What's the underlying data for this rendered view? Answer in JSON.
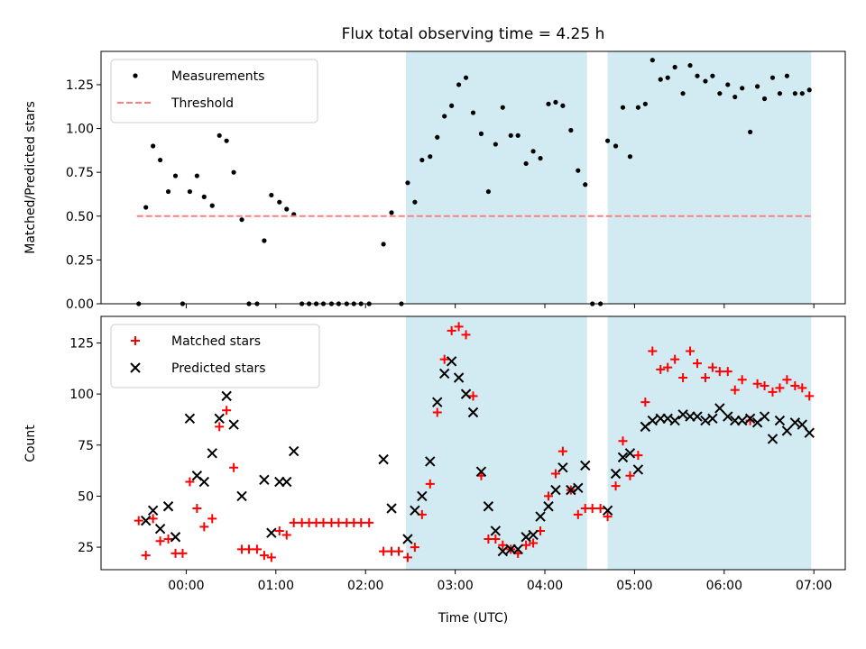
{
  "chart_data": [
    {
      "type": "scatter",
      "title": "Flux total observing time = 4.25 h",
      "ylabel": "Matched/Predicted stars",
      "ylim": [
        0,
        1.44
      ],
      "xlim": [
        -0.95,
        7.35
      ],
      "yticks": [
        0.0,
        0.25,
        0.5,
        0.75,
        1.0,
        1.25
      ],
      "ytick_labels": [
        "0.00",
        "0.25",
        "0.50",
        "0.75",
        "1.00",
        "1.25"
      ],
      "shaded_intervals": [
        [
          2.45,
          4.47
        ],
        [
          4.7,
          6.97
        ]
      ],
      "shade_color": "#add8e6",
      "legend_position": "upper left",
      "series": [
        {
          "name": "Measurements",
          "marker": "dot",
          "color": "#000000",
          "points": [
            [
              -0.53,
              0.0
            ],
            [
              -0.45,
              0.55
            ],
            [
              -0.37,
              0.9
            ],
            [
              -0.29,
              0.82
            ],
            [
              -0.2,
              0.64
            ],
            [
              -0.12,
              0.73
            ],
            [
              -0.04,
              0.0
            ],
            [
              0.04,
              0.64
            ],
            [
              0.12,
              0.73
            ],
            [
              0.2,
              0.61
            ],
            [
              0.29,
              0.56
            ],
            [
              0.37,
              0.96
            ],
            [
              0.45,
              0.93
            ],
            [
              0.53,
              0.75
            ],
            [
              0.62,
              0.48
            ],
            [
              0.7,
              0.0
            ],
            [
              0.79,
              0.0
            ],
            [
              0.87,
              0.36
            ],
            [
              0.95,
              0.62
            ],
            [
              1.04,
              0.58
            ],
            [
              1.12,
              0.54
            ],
            [
              1.2,
              0.51
            ],
            [
              1.29,
              0.0
            ],
            [
              1.37,
              0.0
            ],
            [
              1.45,
              0.0
            ],
            [
              1.53,
              0.0
            ],
            [
              1.62,
              0.0
            ],
            [
              1.7,
              0.0
            ],
            [
              1.79,
              0.0
            ],
            [
              1.87,
              0.0
            ],
            [
              1.95,
              0.0
            ],
            [
              2.04,
              0.0
            ],
            [
              2.2,
              0.34
            ],
            [
              2.29,
              0.52
            ],
            [
              2.4,
              0.0
            ],
            [
              2.47,
              0.69
            ],
            [
              2.55,
              0.58
            ],
            [
              2.63,
              0.82
            ],
            [
              2.72,
              0.84
            ],
            [
              2.8,
              0.95
            ],
            [
              2.88,
              1.07
            ],
            [
              2.96,
              1.13
            ],
            [
              3.04,
              1.25
            ],
            [
              3.12,
              1.29
            ],
            [
              3.2,
              1.09
            ],
            [
              3.29,
              0.97
            ],
            [
              3.37,
              0.64
            ],
            [
              3.45,
              0.91
            ],
            [
              3.53,
              1.12
            ],
            [
              3.62,
              0.96
            ],
            [
              3.7,
              0.96
            ],
            [
              3.79,
              0.8
            ],
            [
              3.87,
              0.87
            ],
            [
              3.95,
              0.83
            ],
            [
              4.04,
              1.14
            ],
            [
              4.12,
              1.15
            ],
            [
              4.2,
              1.13
            ],
            [
              4.29,
              0.99
            ],
            [
              4.37,
              0.76
            ],
            [
              4.45,
              0.68
            ],
            [
              4.53,
              0.0
            ],
            [
              4.62,
              0.0
            ],
            [
              4.7,
              0.93
            ],
            [
              4.79,
              0.9
            ],
            [
              4.87,
              1.12
            ],
            [
              4.95,
              0.84
            ],
            [
              5.04,
              1.12
            ],
            [
              5.12,
              1.14
            ],
            [
              5.2,
              1.39
            ],
            [
              5.29,
              1.28
            ],
            [
              5.37,
              1.29
            ],
            [
              5.45,
              1.35
            ],
            [
              5.54,
              1.2
            ],
            [
              5.62,
              1.36
            ],
            [
              5.7,
              1.3
            ],
            [
              5.79,
              1.27
            ],
            [
              5.87,
              1.3
            ],
            [
              5.95,
              1.2
            ],
            [
              6.04,
              1.25
            ],
            [
              6.12,
              1.18
            ],
            [
              6.2,
              1.23
            ],
            [
              6.29,
              0.98
            ],
            [
              6.37,
              1.24
            ],
            [
              6.45,
              1.17
            ],
            [
              6.54,
              1.29
            ],
            [
              6.62,
              1.2
            ],
            [
              6.7,
              1.3
            ],
            [
              6.79,
              1.2
            ],
            [
              6.87,
              1.2
            ],
            [
              6.95,
              1.22
            ]
          ]
        },
        {
          "name": "Threshold",
          "marker": "dashed-line",
          "color": "#ff7f7f",
          "points": [
            [
              -0.55,
              0.5
            ],
            [
              6.99,
              0.5
            ]
          ]
        }
      ]
    },
    {
      "type": "scatter",
      "xlabel": "Time (UTC)",
      "ylabel": "Count",
      "ylim": [
        14,
        138
      ],
      "xlim": [
        -0.95,
        7.35
      ],
      "yticks": [
        25,
        50,
        75,
        100,
        125
      ],
      "ytick_labels": [
        "25",
        "50",
        "75",
        "100",
        "125"
      ],
      "xticks": [
        0,
        1,
        2,
        3,
        4,
        5,
        6,
        7
      ],
      "xtick_labels": [
        "00:00",
        "01:00",
        "02:00",
        "03:00",
        "04:00",
        "05:00",
        "06:00",
        "07:00"
      ],
      "shaded_intervals": [
        [
          2.45,
          4.47
        ],
        [
          4.7,
          6.97
        ]
      ],
      "shade_color": "#add8e6",
      "legend_position": "upper left",
      "series": [
        {
          "name": "Matched stars",
          "marker": "plus",
          "color": "#ff0000",
          "points": [
            [
              -0.53,
              38
            ],
            [
              -0.45,
              21
            ],
            [
              -0.37,
              39
            ],
            [
              -0.29,
              28
            ],
            [
              -0.2,
              29
            ],
            [
              -0.12,
              22
            ],
            [
              -0.04,
              22
            ],
            [
              0.04,
              57
            ],
            [
              0.12,
              44
            ],
            [
              0.2,
              35
            ],
            [
              0.29,
              39
            ],
            [
              0.37,
              84
            ],
            [
              0.45,
              92
            ],
            [
              0.53,
              64
            ],
            [
              0.62,
              24
            ],
            [
              0.7,
              24
            ],
            [
              0.79,
              24
            ],
            [
              0.87,
              21
            ],
            [
              0.95,
              20
            ],
            [
              1.04,
              33
            ],
            [
              1.12,
              31
            ],
            [
              1.2,
              37
            ],
            [
              1.29,
              37
            ],
            [
              1.37,
              37
            ],
            [
              1.45,
              37
            ],
            [
              1.53,
              37
            ],
            [
              1.62,
              37
            ],
            [
              1.7,
              37
            ],
            [
              1.79,
              37
            ],
            [
              1.87,
              37
            ],
            [
              1.95,
              37
            ],
            [
              2.04,
              37
            ],
            [
              2.2,
              23
            ],
            [
              2.29,
              23
            ],
            [
              2.37,
              23
            ],
            [
              2.47,
              20
            ],
            [
              2.55,
              25
            ],
            [
              2.63,
              41
            ],
            [
              2.72,
              56
            ],
            [
              2.8,
              91
            ],
            [
              2.88,
              117
            ],
            [
              2.96,
              131
            ],
            [
              3.04,
              133
            ],
            [
              3.12,
              129
            ],
            [
              3.2,
              99
            ],
            [
              3.29,
              60
            ],
            [
              3.37,
              29
            ],
            [
              3.45,
              29
            ],
            [
              3.53,
              26
            ],
            [
              3.62,
              24
            ],
            [
              3.7,
              22
            ],
            [
              3.79,
              26
            ],
            [
              3.87,
              27
            ],
            [
              3.95,
              33
            ],
            [
              4.04,
              50
            ],
            [
              4.12,
              61
            ],
            [
              4.2,
              72
            ],
            [
              4.29,
              53
            ],
            [
              4.37,
              41
            ],
            [
              4.45,
              44
            ],
            [
              4.53,
              44
            ],
            [
              4.62,
              44
            ],
            [
              4.7,
              40
            ],
            [
              4.79,
              55
            ],
            [
              4.87,
              77
            ],
            [
              4.95,
              60
            ],
            [
              5.04,
              70
            ],
            [
              5.12,
              96
            ],
            [
              5.2,
              121
            ],
            [
              5.29,
              112
            ],
            [
              5.37,
              113
            ],
            [
              5.45,
              117
            ],
            [
              5.54,
              108
            ],
            [
              5.62,
              121
            ],
            [
              5.7,
              115
            ],
            [
              5.79,
              108
            ],
            [
              5.87,
              113
            ],
            [
              5.95,
              111
            ],
            [
              6.04,
              111
            ],
            [
              6.12,
              102
            ],
            [
              6.2,
              107
            ],
            [
              6.29,
              87
            ],
            [
              6.37,
              105
            ],
            [
              6.45,
              104
            ],
            [
              6.54,
              101
            ],
            [
              6.62,
              103
            ],
            [
              6.7,
              107
            ],
            [
              6.79,
              104
            ],
            [
              6.87,
              103
            ],
            [
              6.95,
              99
            ]
          ]
        },
        {
          "name": "Predicted stars",
          "marker": "x",
          "color": "#000000",
          "points": [
            [
              -0.45,
              38
            ],
            [
              -0.37,
              43
            ],
            [
              -0.29,
              34
            ],
            [
              -0.2,
              45
            ],
            [
              -0.12,
              30
            ],
            [
              0.04,
              88
            ],
            [
              0.12,
              60
            ],
            [
              0.2,
              57
            ],
            [
              0.29,
              71
            ],
            [
              0.37,
              88
            ],
            [
              0.45,
              99
            ],
            [
              0.53,
              85
            ],
            [
              0.62,
              50
            ],
            [
              0.87,
              58
            ],
            [
              0.95,
              32
            ],
            [
              1.04,
              57
            ],
            [
              1.12,
              57
            ],
            [
              1.2,
              72
            ],
            [
              2.2,
              68
            ],
            [
              2.29,
              44
            ],
            [
              2.47,
              29
            ],
            [
              2.55,
              43
            ],
            [
              2.63,
              50
            ],
            [
              2.72,
              67
            ],
            [
              2.8,
              96
            ],
            [
              2.88,
              110
            ],
            [
              2.96,
              116
            ],
            [
              3.04,
              108
            ],
            [
              3.12,
              100
            ],
            [
              3.2,
              91
            ],
            [
              3.29,
              62
            ],
            [
              3.37,
              45
            ],
            [
              3.45,
              33
            ],
            [
              3.53,
              23
            ],
            [
              3.62,
              24
            ],
            [
              3.7,
              24
            ],
            [
              3.79,
              30
            ],
            [
              3.87,
              31
            ],
            [
              3.95,
              40
            ],
            [
              4.04,
              45
            ],
            [
              4.12,
              53
            ],
            [
              4.2,
              64
            ],
            [
              4.29,
              53
            ],
            [
              4.37,
              54
            ],
            [
              4.45,
              65
            ],
            [
              4.7,
              43
            ],
            [
              4.79,
              61
            ],
            [
              4.87,
              69
            ],
            [
              4.95,
              71
            ],
            [
              5.04,
              63
            ],
            [
              5.12,
              84
            ],
            [
              5.2,
              87
            ],
            [
              5.29,
              88
            ],
            [
              5.37,
              88
            ],
            [
              5.45,
              87
            ],
            [
              5.54,
              90
            ],
            [
              5.62,
              89
            ],
            [
              5.7,
              89
            ],
            [
              5.79,
              87
            ],
            [
              5.87,
              88
            ],
            [
              5.95,
              93
            ],
            [
              6.04,
              89
            ],
            [
              6.12,
              87
            ],
            [
              6.2,
              87
            ],
            [
              6.29,
              88
            ],
            [
              6.37,
              86
            ],
            [
              6.45,
              89
            ],
            [
              6.54,
              78
            ],
            [
              6.62,
              87
            ],
            [
              6.7,
              82
            ],
            [
              6.79,
              86
            ],
            [
              6.87,
              85
            ],
            [
              6.95,
              81
            ]
          ]
        }
      ]
    }
  ]
}
